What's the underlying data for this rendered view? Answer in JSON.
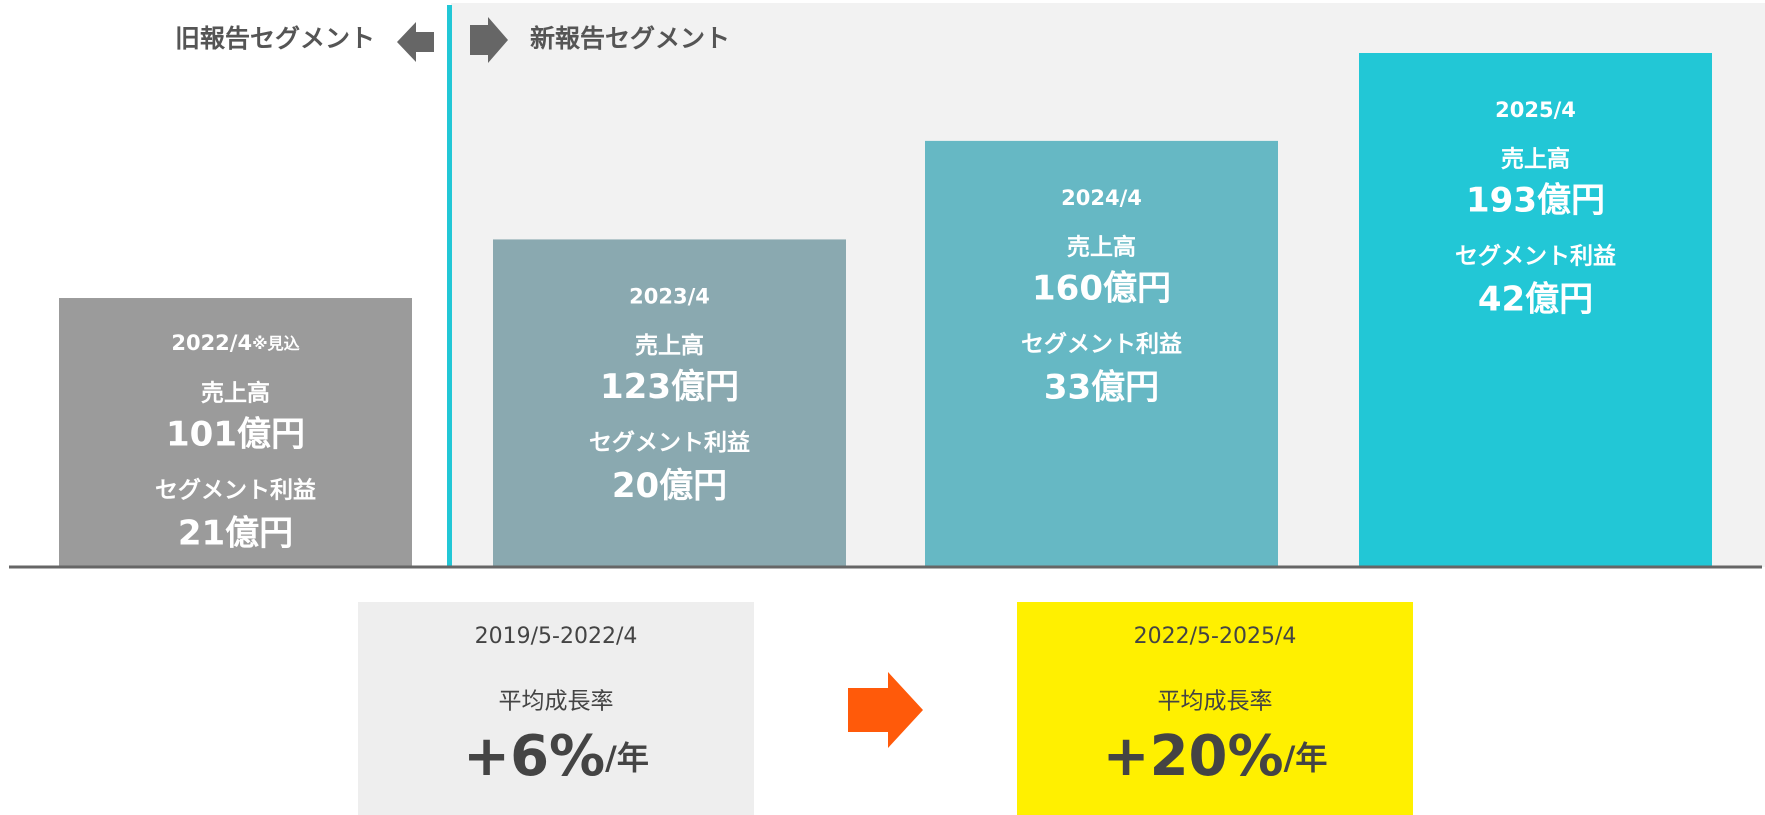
{
  "chart_data": {
    "type": "bar",
    "segment_labels": {
      "old": "旧報告セグメント",
      "new": "新報告セグメント"
    },
    "categories": [
      "2022/4",
      "2023/4",
      "2024/4",
      "2025/4"
    ],
    "annotation": "※見込",
    "colors": [
      "#9b9b9b",
      "#8aa9b0",
      "#66b8c4",
      "#22c7d6"
    ],
    "series": [
      {
        "name": "売上高",
        "values": [
          101,
          123,
          160,
          193
        ],
        "value_labels": [
          "101億円",
          "123億円",
          "160億円",
          "193億円"
        ]
      },
      {
        "name": "セグメント利益",
        "values": [
          21,
          20,
          33,
          42
        ],
        "value_labels": [
          "21億円",
          "20億円",
          "33億円",
          "42億円"
        ]
      }
    ],
    "growth": [
      {
        "period": "2019/5-2022/4",
        "label": "平均成長率",
        "value": "+6%",
        "unit": "/年",
        "color": "#eeeeee"
      },
      {
        "period": "2022/5-2025/4",
        "label": "平均成長率",
        "value": "+20%",
        "unit": "/年",
        "color": "#fff000"
      }
    ]
  }
}
